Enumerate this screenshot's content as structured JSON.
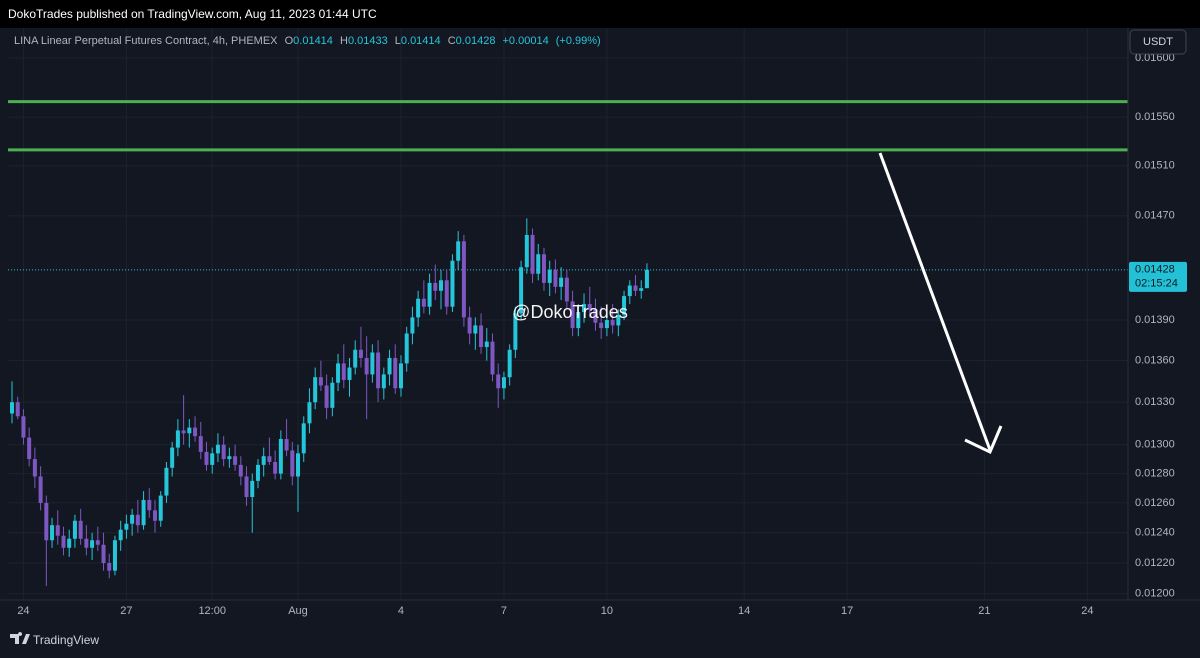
{
  "header": {
    "publisher": "DokoTrades published on TradingView.com, Aug 11, 2023 01:44 UTC"
  },
  "footer": {
    "brand": "TradingView"
  },
  "currency_button": "USDT",
  "chart_data": {
    "type": "candlestick",
    "symbol": "LINA Linear Perpetual Futures Contract, 4h, PHEMEX",
    "ohlc_letters": [
      "O",
      "H",
      "L",
      "C"
    ],
    "ohlc": [
      0.01414,
      0.01433,
      0.01414,
      0.01428
    ],
    "change": {
      "value": 0.00014,
      "label": "+0.00014"
    },
    "change_pct": {
      "value": 0.99,
      "label": "(+0.99%)"
    },
    "watermark": "@DokoTrades",
    "last_price": {
      "value": 0.01428,
      "label": "0.01428"
    },
    "countdown": "02:15:24",
    "up_color": "#26c6da",
    "down_color": "#7e57c2",
    "level_color": "#4caf50",
    "levels": [
      0.01563,
      0.01523
    ],
    "log_scale": true,
    "grid": true,
    "ylim": [
      0.01196,
      0.01626
    ],
    "yticks": [
      {
        "value": 0.016,
        "label": "0.01600"
      },
      {
        "value": 0.0155,
        "label": "0.01550"
      },
      {
        "value": 0.0151,
        "label": "0.01510"
      },
      {
        "value": 0.0147,
        "label": "0.01470"
      },
      {
        "value": 0.0139,
        "label": "0.01390"
      },
      {
        "value": 0.0136,
        "label": "0.01360"
      },
      {
        "value": 0.0133,
        "label": "0.01330"
      },
      {
        "value": 0.013,
        "label": "0.01300"
      },
      {
        "value": 0.0128,
        "label": "0.01280"
      },
      {
        "value": 0.0126,
        "label": "0.01260"
      },
      {
        "value": 0.0124,
        "label": "0.01240"
      },
      {
        "value": 0.0122,
        "label": "0.01220"
      },
      {
        "value": 0.012,
        "label": "0.01200"
      }
    ],
    "xlim": [
      -0.7,
      195.1
    ],
    "xticks": [
      {
        "value": 2,
        "label": "24"
      },
      {
        "value": 20,
        "label": "27"
      },
      {
        "value": 35,
        "label": "12:00"
      },
      {
        "value": 50,
        "label": "Aug"
      },
      {
        "value": 68,
        "label": "4"
      },
      {
        "value": 86,
        "label": "7"
      },
      {
        "value": 104,
        "label": "10"
      },
      {
        "value": 128,
        "label": "14"
      },
      {
        "value": 146,
        "label": "17"
      },
      {
        "value": 170,
        "label": "21"
      },
      {
        "value": 188,
        "label": "24"
      }
    ],
    "candles": [
      [
        0.01322,
        0.01345,
        0.01315,
        0.0133
      ],
      [
        0.0133,
        0.01334,
        0.01318,
        0.0132
      ],
      [
        0.0132,
        0.01325,
        0.013,
        0.01305
      ],
      [
        0.01305,
        0.01312,
        0.01285,
        0.0129
      ],
      [
        0.0129,
        0.01298,
        0.0127,
        0.01278
      ],
      [
        0.01278,
        0.01285,
        0.01255,
        0.0126
      ],
      [
        0.0126,
        0.01265,
        0.01205,
        0.01235
      ],
      [
        0.01235,
        0.0125,
        0.0123,
        0.01245
      ],
      [
        0.01245,
        0.01255,
        0.01232,
        0.01238
      ],
      [
        0.01238,
        0.01244,
        0.01225,
        0.0123
      ],
      [
        0.0123,
        0.01242,
        0.01224,
        0.01236
      ],
      [
        0.01236,
        0.01252,
        0.0123,
        0.01248
      ],
      [
        0.01248,
        0.01256,
        0.01232,
        0.01236
      ],
      [
        0.01236,
        0.01245,
        0.01225,
        0.0123
      ],
      [
        0.0123,
        0.0124,
        0.01222,
        0.01235
      ],
      [
        0.01235,
        0.01244,
        0.01228,
        0.01232
      ],
      [
        0.01232,
        0.0124,
        0.01215,
        0.0122
      ],
      [
        0.0122,
        0.01226,
        0.0121,
        0.01215
      ],
      [
        0.01215,
        0.01238,
        0.01212,
        0.01235
      ],
      [
        0.01235,
        0.01248,
        0.01228,
        0.01242
      ],
      [
        0.01242,
        0.01252,
        0.01236,
        0.01246
      ],
      [
        0.01246,
        0.01256,
        0.01238,
        0.01252
      ],
      [
        0.01252,
        0.01262,
        0.0124,
        0.01245
      ],
      [
        0.01245,
        0.01268,
        0.01242,
        0.01262
      ],
      [
        0.01262,
        0.0127,
        0.0125,
        0.01255
      ],
      [
        0.01255,
        0.01262,
        0.0124,
        0.01248
      ],
      [
        0.01248,
        0.01268,
        0.01244,
        0.01265
      ],
      [
        0.01265,
        0.01288,
        0.0126,
        0.01284
      ],
      [
        0.01284,
        0.01302,
        0.01278,
        0.01298
      ],
      [
        0.01298,
        0.01318,
        0.01292,
        0.0131
      ],
      [
        0.0131,
        0.01335,
        0.013,
        0.01308
      ],
      [
        0.01308,
        0.01318,
        0.01298,
        0.01312
      ],
      [
        0.01312,
        0.0132,
        0.01302,
        0.01306
      ],
      [
        0.01306,
        0.01316,
        0.0129,
        0.01295
      ],
      [
        0.01295,
        0.01302,
        0.01282,
        0.01286
      ],
      [
        0.01286,
        0.01298,
        0.0128,
        0.01294
      ],
      [
        0.01294,
        0.01308,
        0.01288,
        0.013
      ],
      [
        0.013,
        0.01306,
        0.01285,
        0.0129
      ],
      [
        0.0129,
        0.01298,
        0.01284,
        0.01292
      ],
      [
        0.01292,
        0.013,
        0.01282,
        0.01286
      ],
      [
        0.01286,
        0.01292,
        0.01272,
        0.01278
      ],
      [
        0.01278,
        0.01285,
        0.01258,
        0.01264
      ],
      [
        0.01264,
        0.0128,
        0.0124,
        0.01275
      ],
      [
        0.01275,
        0.0129,
        0.0127,
        0.01286
      ],
      [
        0.01286,
        0.01298,
        0.01278,
        0.01292
      ],
      [
        0.01292,
        0.01305,
        0.01286,
        0.01288
      ],
      [
        0.01288,
        0.01296,
        0.01276,
        0.0128
      ],
      [
        0.0128,
        0.0131,
        0.01276,
        0.01304
      ],
      [
        0.01304,
        0.01318,
        0.01292,
        0.01296
      ],
      [
        0.01296,
        0.01302,
        0.01272,
        0.01278
      ],
      [
        0.01278,
        0.013,
        0.01254,
        0.01294
      ],
      [
        0.01294,
        0.0132,
        0.01288,
        0.01315
      ],
      [
        0.01315,
        0.0134,
        0.01308,
        0.0133
      ],
      [
        0.0133,
        0.01355,
        0.01325,
        0.01348
      ],
      [
        0.01348,
        0.0136,
        0.01338,
        0.01342
      ],
      [
        0.01342,
        0.0135,
        0.01318,
        0.01326
      ],
      [
        0.01326,
        0.01348,
        0.0132,
        0.01344
      ],
      [
        0.01344,
        0.01365,
        0.01338,
        0.01358
      ],
      [
        0.01358,
        0.01372,
        0.0134,
        0.01346
      ],
      [
        0.01346,
        0.01362,
        0.01334,
        0.01355
      ],
      [
        0.01355,
        0.01375,
        0.0135,
        0.01368
      ],
      [
        0.01368,
        0.01385,
        0.01355,
        0.01362
      ],
      [
        0.01362,
        0.01378,
        0.01318,
        0.0135
      ],
      [
        0.0135,
        0.01372,
        0.01344,
        0.01366
      ],
      [
        0.01366,
        0.01375,
        0.0133,
        0.0134
      ],
      [
        0.0134,
        0.01355,
        0.01332,
        0.0135
      ],
      [
        0.0135,
        0.01368,
        0.01342,
        0.01362
      ],
      [
        0.01362,
        0.01372,
        0.01336,
        0.0134
      ],
      [
        0.0134,
        0.01364,
        0.01334,
        0.01358
      ],
      [
        0.01358,
        0.01385,
        0.01352,
        0.0138
      ],
      [
        0.0138,
        0.014,
        0.01372,
        0.01392
      ],
      [
        0.01392,
        0.01412,
        0.01385,
        0.01406
      ],
      [
        0.01406,
        0.0142,
        0.01395,
        0.014
      ],
      [
        0.014,
        0.01425,
        0.01394,
        0.01418
      ],
      [
        0.01418,
        0.01432,
        0.01405,
        0.01412
      ],
      [
        0.01412,
        0.01428,
        0.01398,
        0.0142
      ],
      [
        0.0142,
        0.01428,
        0.01394,
        0.014
      ],
      [
        0.014,
        0.0144,
        0.01396,
        0.01435
      ],
      [
        0.01435,
        0.01458,
        0.01428,
        0.0145
      ],
      [
        0.0145,
        0.01455,
        0.01385,
        0.01392
      ],
      [
        0.01392,
        0.014,
        0.01372,
        0.0138
      ],
      [
        0.0138,
        0.01392,
        0.01368,
        0.01386
      ],
      [
        0.01386,
        0.01395,
        0.01365,
        0.0137
      ],
      [
        0.0137,
        0.01384,
        0.0136,
        0.01374
      ],
      [
        0.01374,
        0.0138,
        0.01345,
        0.0135
      ],
      [
        0.0135,
        0.01358,
        0.01326,
        0.0134
      ],
      [
        0.0134,
        0.01352,
        0.01332,
        0.01348
      ],
      [
        0.01348,
        0.01372,
        0.01342,
        0.01368
      ],
      [
        0.01368,
        0.014,
        0.01362,
        0.01395
      ],
      [
        0.01395,
        0.01435,
        0.0139,
        0.0143
      ],
      [
        0.0143,
        0.01468,
        0.01425,
        0.01455
      ],
      [
        0.01455,
        0.0146,
        0.01418,
        0.01425
      ],
      [
        0.01425,
        0.01448,
        0.0142,
        0.0144
      ],
      [
        0.0144,
        0.01445,
        0.01412,
        0.01418
      ],
      [
        0.01418,
        0.01435,
        0.01408,
        0.01428
      ],
      [
        0.01428,
        0.01436,
        0.0141,
        0.01415
      ],
      [
        0.01415,
        0.0143,
        0.01405,
        0.01422
      ],
      [
        0.01422,
        0.01428,
        0.01398,
        0.01404
      ],
      [
        0.01404,
        0.01412,
        0.01378,
        0.01384
      ],
      [
        0.01384,
        0.01402,
        0.01378,
        0.01396
      ],
      [
        0.01396,
        0.0141,
        0.01388,
        0.01402
      ],
      [
        0.01402,
        0.01415,
        0.01392,
        0.01398
      ],
      [
        0.01398,
        0.01406,
        0.01382,
        0.01388
      ],
      [
        0.01388,
        0.014,
        0.01376,
        0.01384
      ],
      [
        0.01384,
        0.01395,
        0.01378,
        0.0139
      ],
      [
        0.0139,
        0.01402,
        0.0138,
        0.01386
      ],
      [
        0.01386,
        0.01398,
        0.01378,
        0.01394
      ],
      [
        0.01394,
        0.01412,
        0.0139,
        0.01408
      ],
      [
        0.01408,
        0.0142,
        0.01402,
        0.01416
      ],
      [
        0.01416,
        0.01424,
        0.01408,
        0.01412
      ],
      [
        0.01412,
        0.0142,
        0.01406,
        0.01414
      ],
      [
        0.01414,
        0.01433,
        0.01414,
        0.01428
      ]
    ]
  }
}
